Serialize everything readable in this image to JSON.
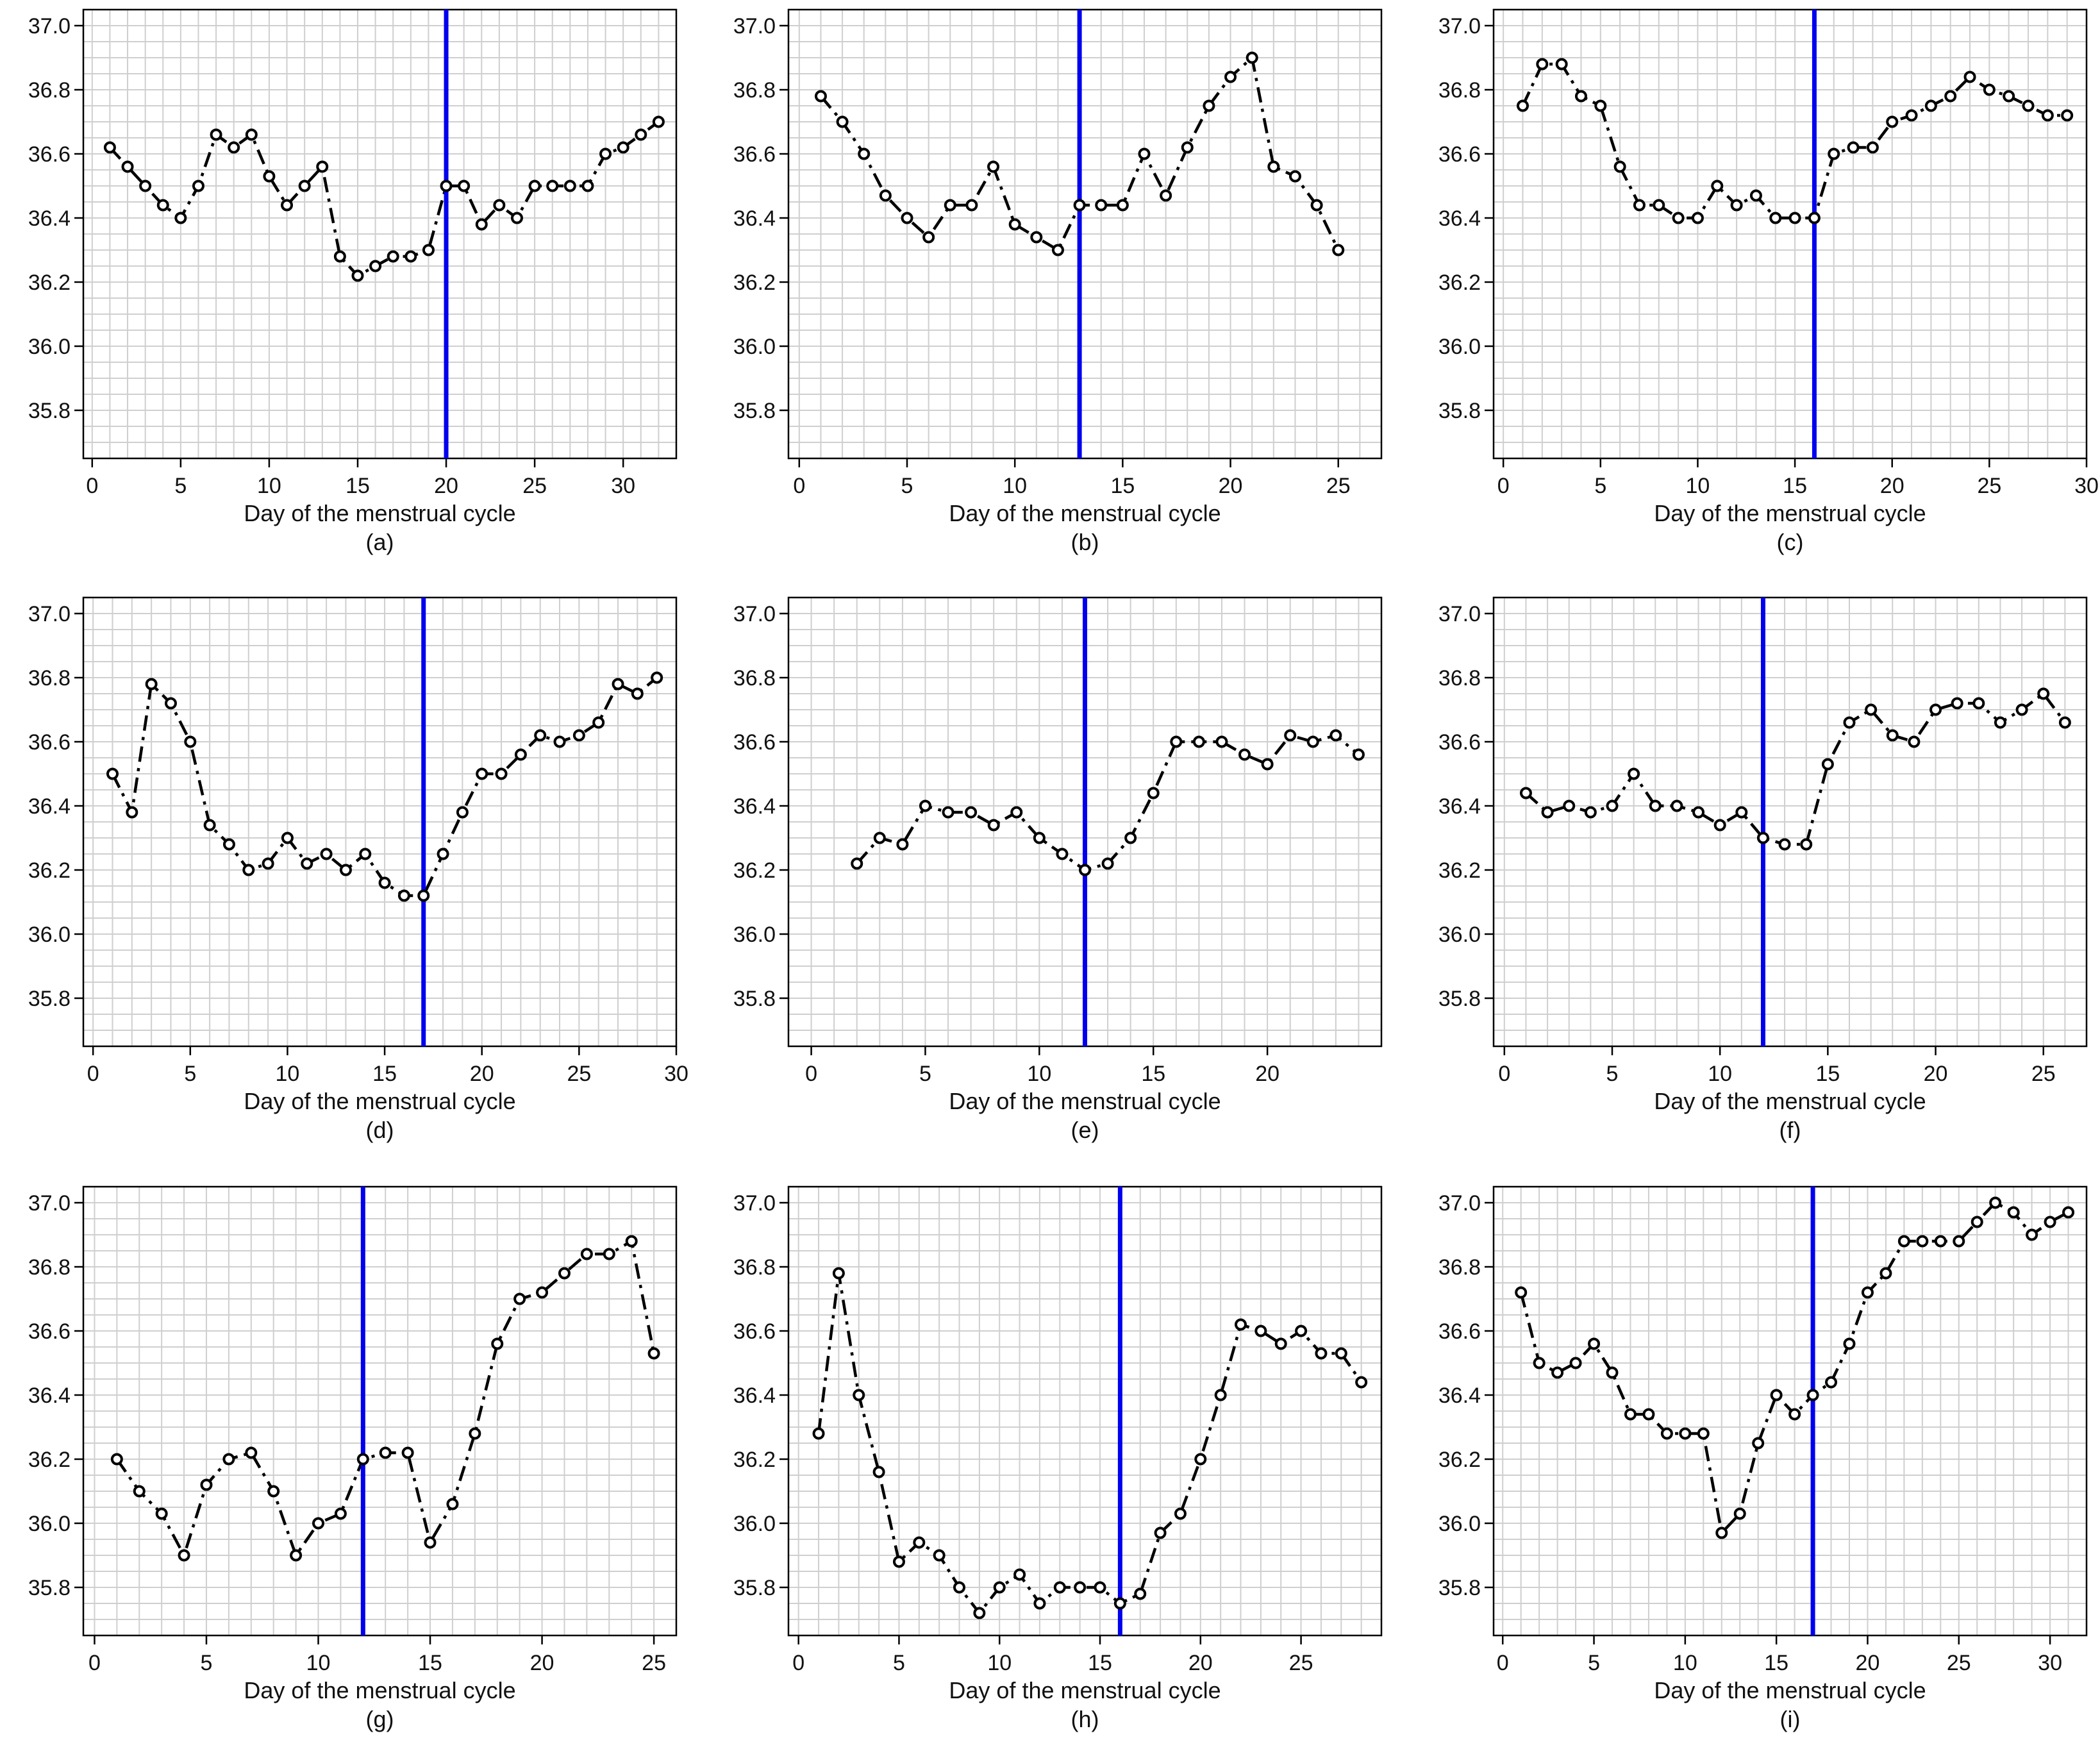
{
  "figure": {
    "line_color": "#000000",
    "marker_color": "#000000",
    "ovulation_line_color": "#0000ee",
    "grid_color": "#cfcfcf"
  },
  "chart_data": [
    {
      "type": "line",
      "panel_label": "(a)",
      "xlabel": "Day of the menstrual cycle",
      "ylabel": "",
      "xlim": [
        -0.5,
        33
      ],
      "ylim": [
        35.65,
        37.05
      ],
      "xticks": [
        0,
        5,
        10,
        15,
        20,
        25,
        30
      ],
      "yticks": [
        35.8,
        36.0,
        36.2,
        36.4,
        36.6,
        36.8,
        37.0
      ],
      "grid": true,
      "vline": 20,
      "x": [
        1,
        2,
        3,
        4,
        5,
        6,
        7,
        8,
        9,
        10,
        11,
        12,
        13,
        14,
        15,
        16,
        17,
        18,
        19,
        20,
        21,
        22,
        23,
        24,
        25,
        26,
        27,
        28,
        29,
        30,
        31,
        32
      ],
      "y": [
        36.62,
        36.56,
        36.5,
        36.44,
        36.4,
        36.5,
        36.66,
        36.62,
        36.66,
        36.53,
        36.44,
        36.5,
        36.56,
        36.28,
        36.22,
        36.25,
        36.28,
        36.28,
        36.3,
        36.5,
        36.5,
        36.38,
        36.44,
        36.4,
        36.5,
        36.5,
        36.5,
        36.5,
        36.6,
        36.62,
        36.66,
        36.7
      ]
    },
    {
      "type": "line",
      "panel_label": "(b)",
      "xlabel": "Day of the menstrual cycle",
      "ylabel": "",
      "xlim": [
        -0.5,
        27
      ],
      "ylim": [
        35.65,
        37.05
      ],
      "xticks": [
        0,
        5,
        10,
        15,
        20,
        25
      ],
      "yticks": [
        35.8,
        36.0,
        36.2,
        36.4,
        36.6,
        36.8,
        37.0
      ],
      "grid": true,
      "vline": 13,
      "x": [
        1,
        2,
        3,
        4,
        5,
        6,
        7,
        8,
        9,
        10,
        11,
        12,
        13,
        14,
        15,
        16,
        17,
        18,
        19,
        20,
        21,
        22,
        23,
        24,
        25
      ],
      "y": [
        36.78,
        36.7,
        36.6,
        36.47,
        36.4,
        36.34,
        36.44,
        36.44,
        36.56,
        36.38,
        36.34,
        36.3,
        36.44,
        36.44,
        36.44,
        36.6,
        36.47,
        36.62,
        36.75,
        36.84,
        36.9,
        36.56,
        36.53,
        36.44,
        36.3
      ]
    },
    {
      "type": "line",
      "panel_label": "(c)",
      "xlabel": "Day of the menstrual cycle",
      "ylabel": "",
      "xlim": [
        -0.5,
        30
      ],
      "ylim": [
        35.65,
        37.05
      ],
      "xticks": [
        0,
        5,
        10,
        15,
        20,
        25,
        30
      ],
      "yticks": [
        35.8,
        36.0,
        36.2,
        36.4,
        36.6,
        36.8,
        37.0
      ],
      "grid": true,
      "vline": 16,
      "x": [
        1,
        2,
        3,
        4,
        5,
        6,
        7,
        8,
        9,
        10,
        11,
        12,
        13,
        14,
        15,
        16,
        17,
        18,
        19,
        20,
        21,
        22,
        23,
        24,
        25,
        26,
        27,
        28,
        29
      ],
      "y": [
        36.75,
        36.88,
        36.88,
        36.78,
        36.75,
        36.56,
        36.44,
        36.44,
        36.4,
        36.4,
        36.5,
        36.44,
        36.47,
        36.4,
        36.4,
        36.4,
        36.6,
        36.62,
        36.62,
        36.7,
        36.72,
        36.75,
        36.78,
        36.84,
        36.8,
        36.78,
        36.75,
        36.72,
        36.72
      ]
    },
    {
      "type": "line",
      "panel_label": "(d)",
      "xlabel": "Day of the menstrual cycle",
      "ylabel": "",
      "xlim": [
        -0.5,
        30
      ],
      "ylim": [
        35.65,
        37.05
      ],
      "xticks": [
        0,
        5,
        10,
        15,
        20,
        25,
        30
      ],
      "yticks": [
        35.8,
        36.0,
        36.2,
        36.4,
        36.6,
        36.8,
        37.0
      ],
      "grid": true,
      "vline": 17,
      "x": [
        1,
        2,
        3,
        4,
        5,
        6,
        7,
        8,
        9,
        10,
        11,
        12,
        13,
        14,
        15,
        16,
        17,
        18,
        19,
        20,
        21,
        22,
        23,
        24,
        25,
        26,
        27,
        28,
        29
      ],
      "y": [
        36.5,
        36.38,
        36.78,
        36.72,
        36.6,
        36.34,
        36.28,
        36.2,
        36.22,
        36.3,
        36.22,
        36.25,
        36.2,
        36.25,
        36.16,
        36.12,
        36.12,
        36.25,
        36.38,
        36.5,
        36.5,
        36.56,
        36.62,
        36.6,
        36.62,
        36.66,
        36.78,
        36.75,
        36.8
      ]
    },
    {
      "type": "line",
      "panel_label": "(e)",
      "xlabel": "Day of the menstrual cycle",
      "ylabel": "",
      "xlim": [
        -1,
        25
      ],
      "ylim": [
        35.65,
        37.05
      ],
      "xticks": [
        0,
        5,
        10,
        15,
        20
      ],
      "yticks": [
        35.8,
        36.0,
        36.2,
        36.4,
        36.6,
        36.8,
        37.0
      ],
      "grid": true,
      "vline": 12,
      "x": [
        2,
        3,
        4,
        5,
        6,
        7,
        8,
        9,
        10,
        11,
        12,
        13,
        14,
        15,
        16,
        17,
        18,
        19,
        20,
        21,
        22,
        23,
        24
      ],
      "y": [
        36.22,
        36.3,
        36.28,
        36.4,
        36.38,
        36.38,
        36.34,
        36.38,
        36.3,
        36.25,
        36.2,
        36.22,
        36.3,
        36.44,
        36.6,
        36.6,
        36.6,
        36.56,
        36.53,
        36.62,
        36.6,
        36.62,
        36.56
      ]
    },
    {
      "type": "line",
      "panel_label": "(f)",
      "xlabel": "Day of the menstrual cycle",
      "ylabel": "",
      "xlim": [
        -0.5,
        27
      ],
      "ylim": [
        35.65,
        37.05
      ],
      "xticks": [
        0,
        5,
        10,
        15,
        20,
        25
      ],
      "yticks": [
        35.8,
        36.0,
        36.2,
        36.4,
        36.6,
        36.8,
        37.0
      ],
      "grid": true,
      "vline": 12,
      "x": [
        1,
        2,
        3,
        4,
        5,
        6,
        7,
        8,
        9,
        10,
        11,
        12,
        13,
        14,
        15,
        16,
        17,
        18,
        19,
        20,
        21,
        22,
        23,
        24,
        25,
        26
      ],
      "y": [
        36.44,
        36.38,
        36.4,
        36.38,
        36.4,
        36.5,
        36.4,
        36.4,
        36.38,
        36.34,
        36.38,
        36.3,
        36.28,
        36.28,
        36.53,
        36.66,
        36.7,
        36.62,
        36.6,
        36.7,
        36.72,
        36.72,
        36.66,
        36.7,
        36.75,
        36.66
      ]
    },
    {
      "type": "line",
      "panel_label": "(g)",
      "xlabel": "Day of the menstrual cycle",
      "ylabel": "",
      "xlim": [
        -0.5,
        26
      ],
      "ylim": [
        35.65,
        37.05
      ],
      "xticks": [
        0,
        5,
        10,
        15,
        20,
        25
      ],
      "yticks": [
        35.8,
        36.0,
        36.2,
        36.4,
        36.6,
        36.8,
        37.0
      ],
      "grid": true,
      "vline": 12,
      "x": [
        1,
        2,
        3,
        4,
        5,
        6,
        7,
        8,
        9,
        10,
        11,
        12,
        13,
        14,
        15,
        16,
        17,
        18,
        19,
        20,
        21,
        22,
        23,
        24,
        25
      ],
      "y": [
        36.2,
        36.1,
        36.03,
        35.9,
        36.12,
        36.2,
        36.22,
        36.1,
        35.9,
        36.0,
        36.03,
        36.2,
        36.22,
        36.22,
        35.94,
        36.06,
        36.28,
        36.56,
        36.7,
        36.72,
        36.78,
        36.84,
        36.84,
        36.88,
        36.53
      ]
    },
    {
      "type": "line",
      "panel_label": "(h)",
      "xlabel": "Day of the menstrual cycle",
      "ylabel": "",
      "xlim": [
        -0.5,
        29
      ],
      "ylim": [
        35.65,
        37.05
      ],
      "xticks": [
        0,
        5,
        10,
        15,
        20,
        25
      ],
      "yticks": [
        35.8,
        36.0,
        36.2,
        36.4,
        36.6,
        36.8,
        37.0
      ],
      "grid": true,
      "vline": 16,
      "x": [
        1,
        2,
        3,
        4,
        5,
        6,
        7,
        8,
        9,
        10,
        11,
        12,
        13,
        14,
        15,
        16,
        17,
        18,
        19,
        20,
        21,
        22,
        23,
        24,
        25,
        26,
        27,
        28
      ],
      "y": [
        36.28,
        36.78,
        36.4,
        36.16,
        35.88,
        35.94,
        35.9,
        35.8,
        35.72,
        35.8,
        35.84,
        35.75,
        35.8,
        35.8,
        35.8,
        35.75,
        35.78,
        35.97,
        36.03,
        36.2,
        36.4,
        36.62,
        36.6,
        36.56,
        36.6,
        36.53,
        36.53,
        36.44
      ]
    },
    {
      "type": "line",
      "panel_label": "(i)",
      "xlabel": "Day of the menstrual cycle",
      "ylabel": "",
      "xlim": [
        -0.5,
        32
      ],
      "ylim": [
        35.65,
        37.05
      ],
      "xticks": [
        0,
        5,
        10,
        15,
        20,
        25,
        30
      ],
      "yticks": [
        35.8,
        36.0,
        36.2,
        36.4,
        36.6,
        36.8,
        37.0
      ],
      "grid": true,
      "vline": 17,
      "x": [
        1,
        2,
        3,
        4,
        5,
        6,
        7,
        8,
        9,
        10,
        11,
        12,
        13,
        14,
        15,
        16,
        17,
        18,
        19,
        20,
        21,
        22,
        23,
        24,
        25,
        26,
        27,
        28,
        29,
        30,
        31
      ],
      "y": [
        36.72,
        36.5,
        36.47,
        36.5,
        36.56,
        36.47,
        36.34,
        36.34,
        36.28,
        36.28,
        36.28,
        35.97,
        36.03,
        36.25,
        36.4,
        36.34,
        36.4,
        36.44,
        36.56,
        36.72,
        36.78,
        36.88,
        36.88,
        36.88,
        36.88,
        36.94,
        37.0,
        36.97,
        36.9,
        36.94,
        36.97
      ]
    }
  ]
}
